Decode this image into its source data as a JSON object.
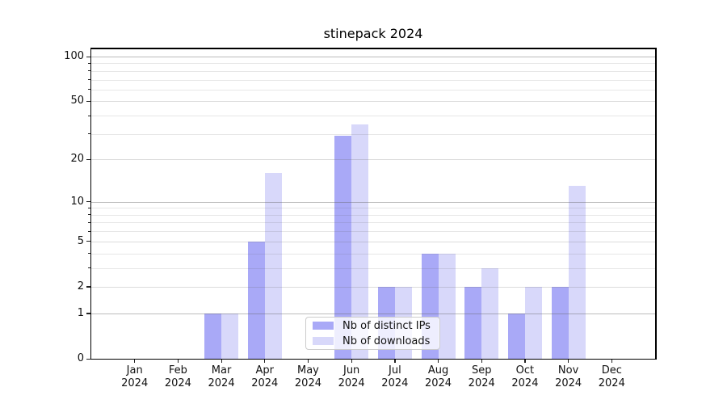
{
  "chart_data": {
    "type": "bar",
    "title": "stinepack 2024",
    "categories": [
      "Jan 2024",
      "Feb 2024",
      "Mar 2024",
      "Apr 2024",
      "May 2024",
      "Jun 2024",
      "Jul 2024",
      "Aug 2024",
      "Sep 2024",
      "Oct 2024",
      "Nov 2024",
      "Dec 2024"
    ],
    "series": [
      {
        "name": "Nb of distinct IPs",
        "color": "#a9a9f7",
        "values": [
          0,
          0,
          1,
          5,
          0,
          29,
          2,
          4,
          2,
          1,
          2,
          0
        ]
      },
      {
        "name": "Nb of downloads",
        "color": "#d8d8fa",
        "values": [
          0,
          0,
          1,
          16,
          0,
          35,
          2,
          4,
          3,
          2,
          13,
          0
        ]
      }
    ],
    "xlabel": "",
    "ylabel": "",
    "yscale": "log1p",
    "y_ticks": [
      0,
      1,
      2,
      5,
      10,
      20,
      50,
      100
    ],
    "y_minor_ticks": [
      3,
      4,
      6,
      7,
      8,
      9,
      30,
      40,
      60,
      70,
      80,
      90
    ],
    "ylim": [
      0,
      113
    ],
    "grid": true,
    "legend_position": "lower center"
  },
  "style": {
    "background": "#ffffff",
    "text_color": "#111111",
    "grid_major_rgba": "rgba(96,96,96,0.42)",
    "grid_labeled_minor_rgba": "rgba(96,96,96,0.22)",
    "grid_minor_rgba": "rgba(96,96,96,0.15)"
  }
}
